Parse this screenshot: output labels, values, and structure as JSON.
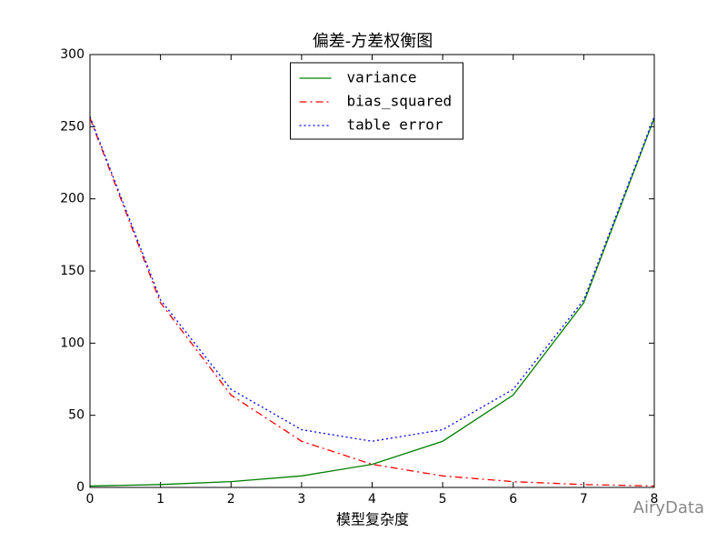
{
  "chart_data": {
    "type": "line",
    "title": "偏差-方差权衡图",
    "xlabel": "模型复杂度",
    "x": [
      0,
      1,
      2,
      3,
      4,
      5,
      6,
      7,
      8
    ],
    "series": [
      {
        "name": "variance",
        "color": "#008000",
        "linestyle": "solid",
        "values": [
          1,
          2,
          4,
          8,
          16,
          32,
          64,
          128,
          256
        ]
      },
      {
        "name": "bias_squared",
        "color": "#ff0000",
        "linestyle": "dashdot",
        "values": [
          256,
          128,
          64,
          32,
          16,
          8,
          4,
          2,
          1
        ]
      },
      {
        "name": "table error",
        "color": "#0000ff",
        "linestyle": "dotted",
        "values": [
          257,
          130,
          68,
          40,
          32,
          40,
          68,
          130,
          257
        ]
      }
    ],
    "xlim": [
      0,
      8
    ],
    "xticks": [
      0,
      1,
      2,
      3,
      4,
      5,
      6,
      7,
      8
    ],
    "ylim": [
      0,
      300
    ],
    "yticks": [
      0,
      50,
      100,
      150,
      200,
      250,
      300
    ],
    "grid": false,
    "legend": "upper center",
    "watermark": "AiryData"
  }
}
